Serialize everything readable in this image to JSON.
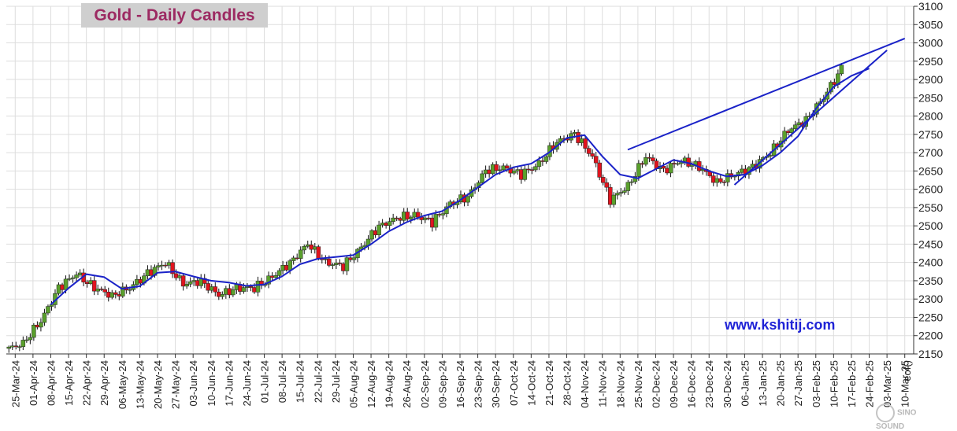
{
  "chart_data": {
    "type": "candlestick",
    "title": "Gold - Daily Candles",
    "annotation": "www.kshitij.com",
    "watermark": "SINO SOUND",
    "y_axis": {
      "position": "right",
      "range": [
        2150,
        3100
      ],
      "step": 50,
      "ticks": [
        2150,
        2200,
        2250,
        2300,
        2350,
        2400,
        2450,
        2500,
        2550,
        2600,
        2650,
        2700,
        2750,
        2800,
        2850,
        2900,
        2950,
        3000,
        3050,
        3100
      ]
    },
    "x_axis": {
      "ticks": [
        "25-Mar-24",
        "01-Apr-24",
        "08-Apr-24",
        "15-Apr-24",
        "22-Apr-24",
        "29-Apr-24",
        "06-May-24",
        "13-May-24",
        "20-May-24",
        "27-May-24",
        "03-Jun-24",
        "10-Jun-24",
        "17-Jun-24",
        "24-Jun-24",
        "01-Jul-24",
        "08-Jul-24",
        "15-Jul-24",
        "22-Jul-24",
        "29-Jul-24",
        "05-Aug-24",
        "12-Aug-24",
        "19-Aug-24",
        "26-Aug-24",
        "02-Sep-24",
        "09-Sep-24",
        "16-Sep-24",
        "23-Sep-24",
        "30-Sep-24",
        "07-Oct-24",
        "14-Oct-24",
        "21-Oct-24",
        "28-Oct-24",
        "04-Nov-24",
        "11-Nov-24",
        "18-Nov-24",
        "25-Nov-24",
        "02-Dec-24",
        "09-Dec-24",
        "16-Dec-24",
        "23-Dec-24",
        "30-Dec-24",
        "06-Jan-25",
        "13-Jan-25",
        "20-Jan-25",
        "27-Jan-25",
        "03-Feb-25",
        "10-Feb-25",
        "17-Feb-25",
        "24-Feb-25",
        "03-Mar-25",
        "10-Mar-25"
      ],
      "end_label": "eof()"
    },
    "grid": true,
    "colors": {
      "up": "#5aa02c",
      "down": "#e0141e",
      "line": "#1a22c8",
      "axis": "#333333",
      "grid": "#dddddd"
    },
    "weekly_closes": [
      2180,
      2240,
      2330,
      2370,
      2330,
      2310,
      2330,
      2370,
      2400,
      2340,
      2350,
      2310,
      2330,
      2330,
      2360,
      2400,
      2450,
      2400,
      2390,
      2440,
      2500,
      2520,
      2530,
      2510,
      2560,
      2580,
      2650,
      2660,
      2640,
      2670,
      2730,
      2750,
      2690,
      2570,
      2610,
      2690,
      2650,
      2680,
      2660,
      2620,
      2640,
      2660,
      2700,
      2760,
      2790,
      2850,
      2930
    ],
    "moving_average": [
      {
        "x": "01-Apr-24",
        "y": null
      },
      {
        "x": "08-Apr-24",
        "y": 2285
      },
      {
        "x": "15-Apr-24",
        "y": 2330
      },
      {
        "x": "22-Apr-24",
        "y": 2368
      },
      {
        "x": "29-Apr-24",
        "y": 2360
      },
      {
        "x": "06-May-24",
        "y": 2328
      },
      {
        "x": "13-May-24",
        "y": 2335
      },
      {
        "x": "20-May-24",
        "y": 2372
      },
      {
        "x": "27-May-24",
        "y": 2375
      },
      {
        "x": "03-Jun-24",
        "y": 2362
      },
      {
        "x": "10-Jun-24",
        "y": 2350
      },
      {
        "x": "17-Jun-24",
        "y": 2345
      },
      {
        "x": "24-Jun-24",
        "y": 2336
      },
      {
        "x": "01-Jul-24",
        "y": 2340
      },
      {
        "x": "08-Jul-24",
        "y": 2362
      },
      {
        "x": "15-Jul-24",
        "y": 2395
      },
      {
        "x": "22-Jul-24",
        "y": 2410
      },
      {
        "x": "29-Jul-24",
        "y": 2415
      },
      {
        "x": "05-Aug-24",
        "y": 2420
      },
      {
        "x": "12-Aug-24",
        "y": 2450
      },
      {
        "x": "19-Aug-24",
        "y": 2485
      },
      {
        "x": "26-Aug-24",
        "y": 2510
      },
      {
        "x": "02-Sep-24",
        "y": 2528
      },
      {
        "x": "09-Sep-24",
        "y": 2540
      },
      {
        "x": "16-Sep-24",
        "y": 2570
      },
      {
        "x": "23-Sep-24",
        "y": 2605
      },
      {
        "x": "30-Sep-24",
        "y": 2640
      },
      {
        "x": "07-Oct-24",
        "y": 2660
      },
      {
        "x": "14-Oct-24",
        "y": 2670
      },
      {
        "x": "21-Oct-24",
        "y": 2700
      },
      {
        "x": "28-Oct-24",
        "y": 2740
      },
      {
        "x": "04-Nov-24",
        "y": 2748
      },
      {
        "x": "11-Nov-24",
        "y": 2690
      },
      {
        "x": "18-Nov-24",
        "y": 2640
      },
      {
        "x": "25-Nov-24",
        "y": 2630
      },
      {
        "x": "02-Dec-24",
        "y": 2655
      },
      {
        "x": "09-Dec-24",
        "y": 2680
      },
      {
        "x": "16-Dec-24",
        "y": 2670
      },
      {
        "x": "23-Dec-24",
        "y": 2650
      },
      {
        "x": "30-Dec-24",
        "y": 2635
      },
      {
        "x": "06-Jan-25",
        "y": 2640
      },
      {
        "x": "13-Jan-25",
        "y": 2665
      },
      {
        "x": "20-Jan-25",
        "y": 2700
      },
      {
        "x": "27-Jan-25",
        "y": 2745
      },
      {
        "x": "03-Feb-25",
        "y": 2820
      },
      {
        "x": "10-Feb-25",
        "y": 2880
      },
      {
        "x": "17-Feb-25",
        "y": 2910
      },
      {
        "x": "24-Feb-25",
        "y": 2930
      }
    ],
    "trendlines": [
      {
        "name": "upper",
        "from": {
          "x": "21-Nov-24",
          "y": 2708
        },
        "to": {
          "x": "10-Mar-25",
          "y": 3012
        }
      },
      {
        "name": "lower",
        "from": {
          "x": "02-Jan-25",
          "y": 2612
        },
        "to": {
          "x": "03-Mar-25",
          "y": 2980
        }
      }
    ]
  }
}
